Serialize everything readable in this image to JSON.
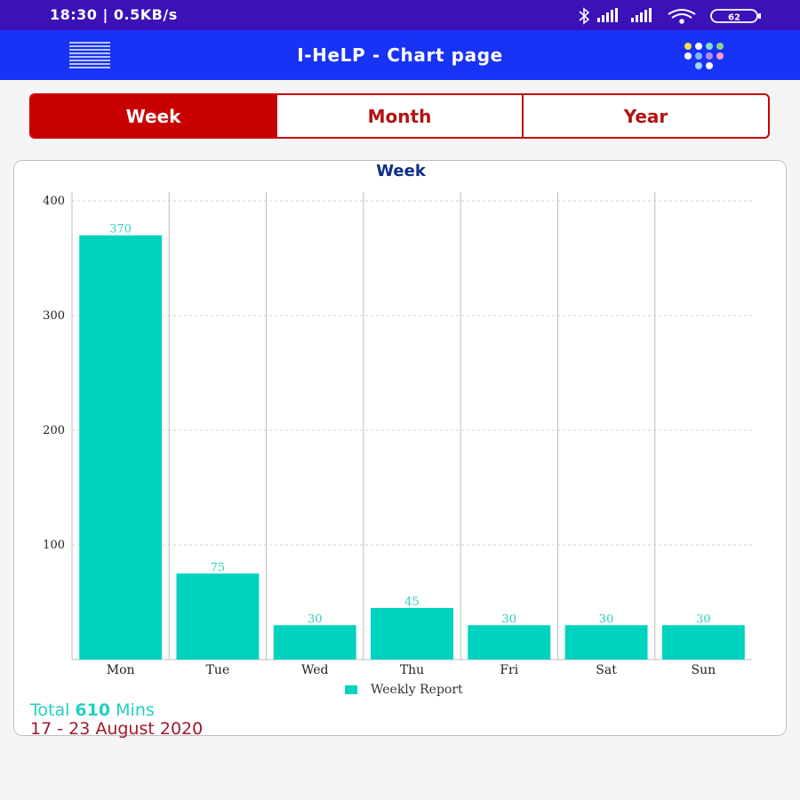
{
  "status_bar": {
    "time_speed": "18:30 | 0.5KB/s",
    "battery": "62"
  },
  "app_bar": {
    "title": "I-HeLP - Chart page",
    "menu_icon": "hamburger-menu-icon",
    "apps_icon": "colored-dots-grid-icon"
  },
  "tabs": [
    {
      "label": "Week",
      "active": true
    },
    {
      "label": "Month",
      "active": false
    },
    {
      "label": "Year",
      "active": false
    }
  ],
  "chart_data": {
    "type": "bar",
    "title": "Week",
    "categories": [
      "Mon",
      "Tue",
      "Wed",
      "Thu",
      "Fri",
      "Sat",
      "Sun"
    ],
    "series": [
      {
        "name": "Weekly Report",
        "values": [
          370,
          75,
          30,
          45,
          30,
          30,
          30
        ]
      }
    ],
    "yticks": [
      100,
      200,
      300,
      400
    ],
    "ylim": [
      0,
      400
    ],
    "xlabel": "",
    "ylabel": "",
    "grid": true,
    "legend": "bottom-center",
    "bar_color": "#00d2c0"
  },
  "summary": {
    "total_prefix": "Total",
    "total_value": "610",
    "total_suffix": "Mins",
    "date_range": "17 - 23 August 2020"
  },
  "colors": {
    "status_bar": "#3a12b8",
    "app_bar": "#1833f5",
    "accent_red": "#c80000",
    "teal": "#00d2c0",
    "title_navy": "#0d2e8c",
    "date_color": "#a0182a"
  }
}
